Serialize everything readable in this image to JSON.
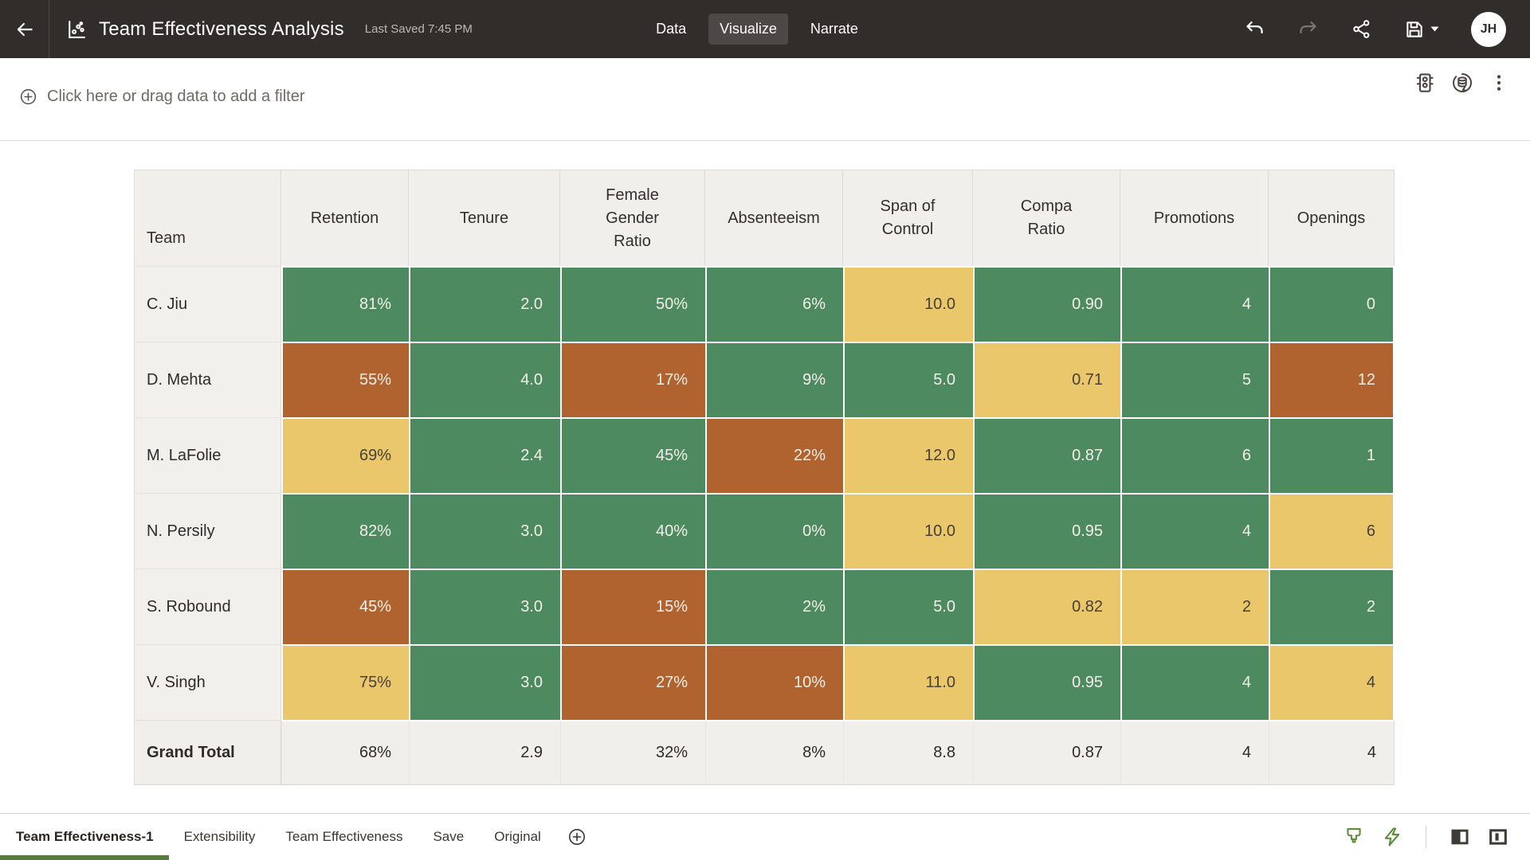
{
  "topbar": {
    "title": "Team Effectiveness Analysis",
    "last_saved": "Last Saved 7:45 PM",
    "tabs": [
      {
        "label": "Data",
        "active": false
      },
      {
        "label": "Visualize",
        "active": true
      },
      {
        "label": "Narrate",
        "active": false
      }
    ],
    "icons": [
      "back-arrow-icon",
      "workbook-chart-icon",
      "undo-icon",
      "redo-icon",
      "share-icon",
      "save-icon",
      "save-caret-icon"
    ],
    "avatar_initials": "JH"
  },
  "filter_bar": {
    "placeholder": "Click here or drag data to add a filter",
    "icons": [
      "plus-circle-icon",
      "conditional-formatting-icon",
      "refresh-data-icon",
      "kebab-menu-icon"
    ]
  },
  "table": {
    "columns": [
      "Team",
      "Retention",
      "Tenure",
      "Female Gender Ratio",
      "Absenteeism",
      "Span of Control",
      "Compa Ratio",
      "Promotions",
      "Openings"
    ],
    "rows": [
      {
        "team": "C. Jiu",
        "cells": [
          {
            "v": "81%",
            "c": "green"
          },
          {
            "v": "2.0",
            "c": "green"
          },
          {
            "v": "50%",
            "c": "green"
          },
          {
            "v": "6%",
            "c": "green"
          },
          {
            "v": "10.0",
            "c": "yellow"
          },
          {
            "v": "0.90",
            "c": "green"
          },
          {
            "v": "4",
            "c": "green"
          },
          {
            "v": "0",
            "c": "green"
          }
        ]
      },
      {
        "team": "D. Mehta",
        "cells": [
          {
            "v": "55%",
            "c": "rust"
          },
          {
            "v": "4.0",
            "c": "green"
          },
          {
            "v": "17%",
            "c": "rust"
          },
          {
            "v": "9%",
            "c": "green"
          },
          {
            "v": "5.0",
            "c": "green"
          },
          {
            "v": "0.71",
            "c": "yellow"
          },
          {
            "v": "5",
            "c": "green"
          },
          {
            "v": "12",
            "c": "rust"
          }
        ]
      },
      {
        "team": "M. LaFolie",
        "cells": [
          {
            "v": "69%",
            "c": "yellow"
          },
          {
            "v": "2.4",
            "c": "green"
          },
          {
            "v": "45%",
            "c": "green"
          },
          {
            "v": "22%",
            "c": "rust"
          },
          {
            "v": "12.0",
            "c": "yellow"
          },
          {
            "v": "0.87",
            "c": "green"
          },
          {
            "v": "6",
            "c": "green"
          },
          {
            "v": "1",
            "c": "green"
          }
        ]
      },
      {
        "team": "N. Persily",
        "cells": [
          {
            "v": "82%",
            "c": "green"
          },
          {
            "v": "3.0",
            "c": "green"
          },
          {
            "v": "40%",
            "c": "green"
          },
          {
            "v": "0%",
            "c": "green"
          },
          {
            "v": "10.0",
            "c": "yellow"
          },
          {
            "v": "0.95",
            "c": "green"
          },
          {
            "v": "4",
            "c": "green"
          },
          {
            "v": "6",
            "c": "yellow"
          }
        ]
      },
      {
        "team": "S. Robound",
        "cells": [
          {
            "v": "45%",
            "c": "rust"
          },
          {
            "v": "3.0",
            "c": "green"
          },
          {
            "v": "15%",
            "c": "rust"
          },
          {
            "v": "2%",
            "c": "green"
          },
          {
            "v": "5.0",
            "c": "green"
          },
          {
            "v": "0.82",
            "c": "yellow"
          },
          {
            "v": "2",
            "c": "yellow"
          },
          {
            "v": "2",
            "c": "green"
          }
        ]
      },
      {
        "team": "V. Singh",
        "cells": [
          {
            "v": "75%",
            "c": "yellow"
          },
          {
            "v": "3.0",
            "c": "green"
          },
          {
            "v": "27%",
            "c": "rust"
          },
          {
            "v": "10%",
            "c": "rust"
          },
          {
            "v": "11.0",
            "c": "yellow"
          },
          {
            "v": "0.95",
            "c": "green"
          },
          {
            "v": "4",
            "c": "green"
          },
          {
            "v": "4",
            "c": "yellow"
          }
        ]
      }
    ],
    "grand_total": {
      "label": "Grand Total",
      "values": [
        "68%",
        "2.9",
        "32%",
        "8%",
        "8.8",
        "0.87",
        "4",
        "4"
      ]
    }
  },
  "colors": {
    "green": "#4e8a60",
    "yellow": "#e9c76a",
    "rust": "#b0632f",
    "active_tab_underline": "#567b41",
    "topbar_bg": "#312d2a"
  },
  "bottombar": {
    "tabs": [
      {
        "label": "Team Effectiveness-1",
        "active": true
      },
      {
        "label": "Extensibility",
        "active": false
      },
      {
        "label": "Team Effectiveness",
        "active": false
      },
      {
        "label": "Save",
        "active": false
      },
      {
        "label": "Original",
        "active": false
      }
    ],
    "icons": [
      "plus-circle-icon",
      "brush-icon",
      "lightning-icon",
      "left-panel-toggle-icon",
      "right-panel-toggle-icon"
    ]
  }
}
